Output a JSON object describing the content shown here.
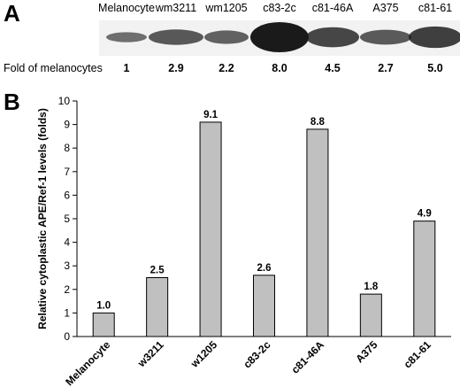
{
  "panel_a": {
    "letter": "A",
    "lanes": [
      "Melanocyte",
      "wm3211",
      "wm1205",
      "c83-2c",
      "c81-46A",
      "A375",
      "c81-61"
    ],
    "fold_label": "Fold of melanocytes",
    "fold_values": [
      "1",
      "2.9",
      "2.2",
      "8.0",
      "4.5",
      "2.7",
      "5.0"
    ],
    "band_intensity": [
      1.0,
      2.9,
      2.2,
      8.0,
      4.5,
      2.7,
      5.0
    ],
    "band_color": "#1a1a1a"
  },
  "chart_data": {
    "type": "bar",
    "panel_letter": "B",
    "title": "",
    "xlabel": "",
    "ylabel": "Relative cytoplastic APE/Ref-1 levels (folds)",
    "categories": [
      "Melanocyte",
      "w3211",
      "w1205",
      "c83-2c",
      "c81-46A",
      "A375",
      "c81-61"
    ],
    "values": [
      1.0,
      2.5,
      9.1,
      2.6,
      8.8,
      1.8,
      4.9
    ],
    "value_labels": [
      "1.0",
      "2.5",
      "9.1",
      "2.6",
      "8.8",
      "1.8",
      "4.9"
    ],
    "ylim": [
      0,
      10
    ],
    "yticks": [
      "0",
      "1",
      "2",
      "3",
      "4",
      "5",
      "6",
      "7",
      "8",
      "9",
      "10"
    ],
    "grid": false,
    "legend": "none",
    "bar_color": "#c0c0c0",
    "bar_edge_color": "#000000"
  }
}
